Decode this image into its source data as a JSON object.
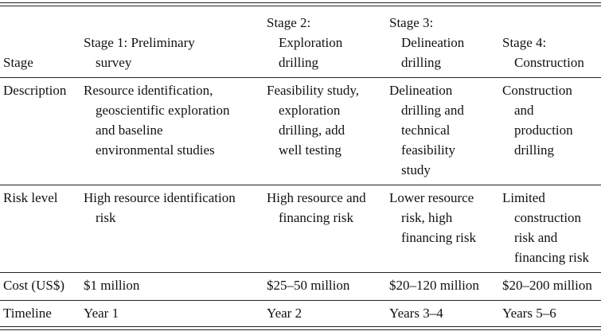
{
  "table": {
    "header": [
      [
        "Stage"
      ],
      [
        "Stage 1: Preliminary",
        "survey"
      ],
      [
        "Stage 2:",
        "Exploration",
        "drilling"
      ],
      [
        "Stage 3:",
        "Delineation",
        "drilling"
      ],
      [
        "Stage 4:",
        "Construction"
      ]
    ],
    "rows": [
      [
        [
          "Description"
        ],
        [
          "Resource identification,",
          "geoscientific exploration",
          "and baseline",
          "environmental studies"
        ],
        [
          "Feasibility study,",
          "exploration",
          "drilling, add",
          "well testing"
        ],
        [
          "Delineation",
          "drilling and",
          "technical",
          "feasibility",
          "study"
        ],
        [
          "Construction",
          "and",
          "production",
          "drilling"
        ]
      ],
      [
        [
          "Risk level"
        ],
        [
          "High resource identification",
          "risk"
        ],
        [
          "High resource and",
          "financing risk"
        ],
        [
          "Lower resource",
          "risk, high",
          "financing risk"
        ],
        [
          "Limited",
          "construction",
          "risk and",
          "financing risk"
        ]
      ],
      [
        [
          "Cost (US$)"
        ],
        [
          "$1 million"
        ],
        [
          "$25–50 million"
        ],
        [
          "$20–120 million"
        ],
        [
          "$20–200 million"
        ]
      ],
      [
        [
          "Timeline"
        ],
        [
          "Year 1"
        ],
        [
          "Year 2"
        ],
        [
          "Years 3–4"
        ],
        [
          "Years 5–6"
        ]
      ]
    ]
  }
}
